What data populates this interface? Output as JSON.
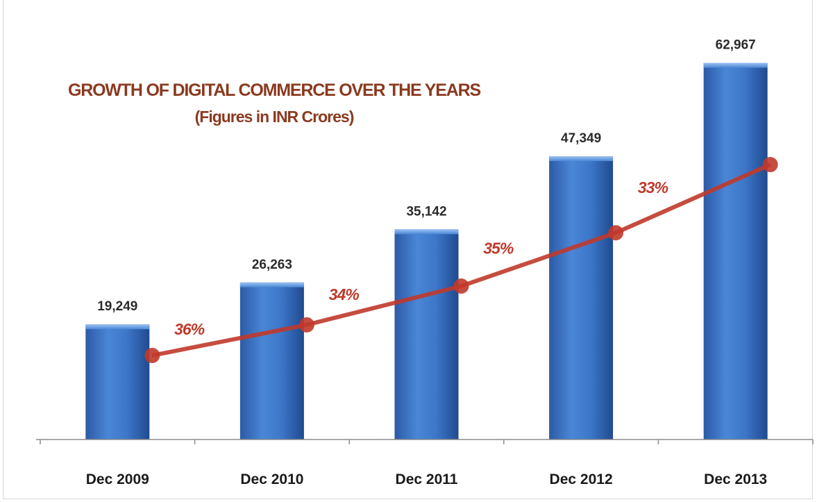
{
  "chart_data": {
    "type": "bar",
    "title": "GROWTH OF DIGITAL COMMERCE OVER THE YEARS",
    "subtitle": "(Figures in INR Crores)",
    "categories": [
      "Dec 2009",
      "Dec 2010",
      "Dec 2011",
      "Dec 2012",
      "Dec 2013"
    ],
    "series": [
      {
        "values": [
          19249,
          26263,
          35142,
          47349,
          62967
        ],
        "value_labels": [
          "19,249",
          "26,263",
          "35,142",
          "47,349",
          "62,967"
        ],
        "color": "#3a6fc0"
      }
    ],
    "growth_line": {
      "color": "#c0392b",
      "labels": [
        "36%",
        "34%",
        "35%",
        "33%"
      ]
    },
    "ylim": [
      0,
      70000
    ],
    "grid": false,
    "legend": "none"
  }
}
